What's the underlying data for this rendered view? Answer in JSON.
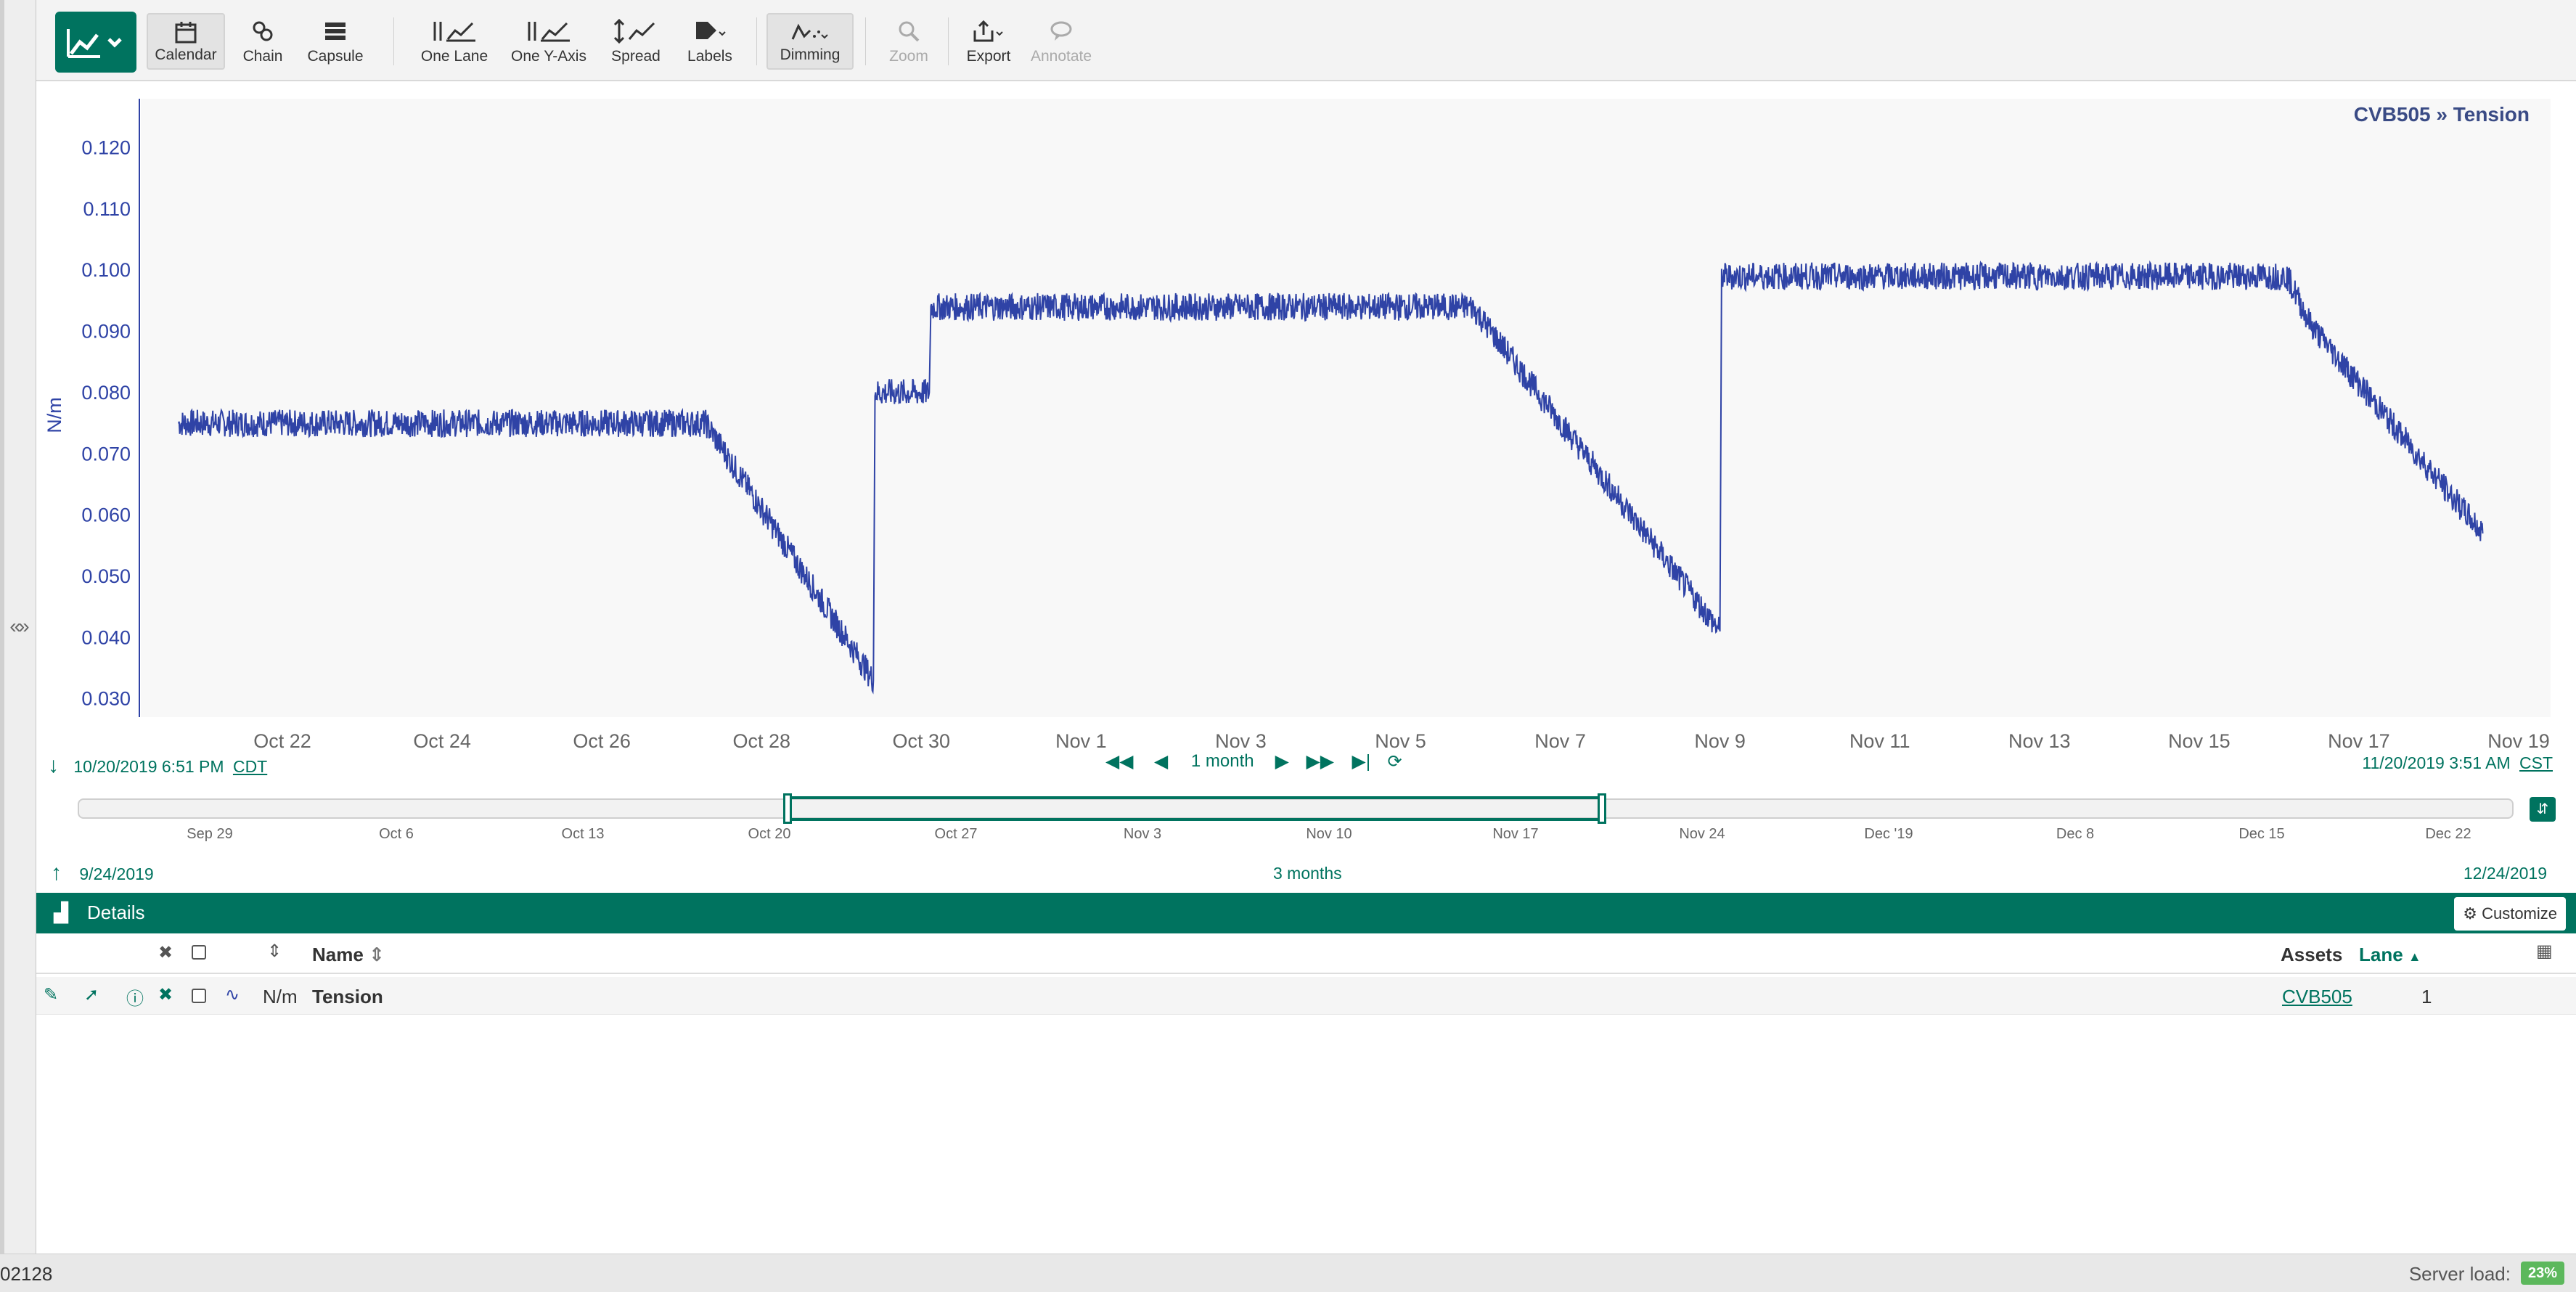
{
  "toolbar": {
    "buttons": [
      {
        "label": "Calendar",
        "icon": "calendar-icon"
      },
      {
        "label": "Chain",
        "icon": "chain-icon"
      },
      {
        "label": "Capsule",
        "icon": "capsule-icon"
      },
      {
        "label": "One Lane",
        "icon": "one-lane-icon"
      },
      {
        "label": "One Y-Axis",
        "icon": "one-y-axis-icon"
      },
      {
        "label": "Spread",
        "icon": "spread-icon"
      },
      {
        "label": "Labels",
        "icon": "labels-icon"
      },
      {
        "label": "Dimming",
        "icon": "dimming-icon"
      },
      {
        "label": "Zoom",
        "icon": "zoom-icon"
      },
      {
        "label": "Export",
        "icon": "export-icon"
      },
      {
        "label": "Annotate",
        "icon": "annotate-icon"
      }
    ]
  },
  "chart_data": {
    "type": "line",
    "title": "CVB505 » Tension",
    "ylabel": "N/m",
    "xlabel": "",
    "ylim": [
      0.027,
      0.128
    ],
    "y_ticks": [
      "0.030",
      "0.040",
      "0.050",
      "0.060",
      "0.070",
      "0.080",
      "0.090",
      "0.100",
      "0.110",
      "0.120"
    ],
    "x_ticks": [
      "Oct 22",
      "Oct 24",
      "Oct 26",
      "Oct 28",
      "Oct 30",
      "Nov 1",
      "Nov 3",
      "Nov 5",
      "Nov 7",
      "Nov 9",
      "Nov 11",
      "Nov 13",
      "Nov 15",
      "Nov 17",
      "Nov 19"
    ],
    "series": [
      {
        "name": "Tension",
        "color": "#2f43a6",
        "x_days_since_oct20_18h": [
          0.0,
          6.6,
          8.7,
          8.72,
          9.4,
          9.42,
          16.2,
          19.3,
          19.32,
          26.4,
          26.7,
          28.4,
          28.85
        ],
        "y": [
          0.075,
          0.075,
          0.033,
          0.08,
          0.08,
          0.094,
          0.094,
          0.041,
          0.099,
          0.099,
          0.091,
          0.064,
          0.057
        ]
      }
    ]
  },
  "display_range": {
    "start": "10/20/2019 6:51 PM",
    "start_tz": "CDT",
    "end": "11/20/2019 3:51 AM",
    "end_tz": "CST",
    "duration": "1 month"
  },
  "overview": {
    "ticks": [
      "Sep 29",
      "Oct 6",
      "Oct 13",
      "Oct 20",
      "Oct 27",
      "Nov 3",
      "Nov 10",
      "Nov 17",
      "Nov 24",
      "Dec '19",
      "Dec 8",
      "Dec 15",
      "Dec 22"
    ],
    "start": "9/24/2019",
    "duration": "3 months",
    "end": "12/24/2019"
  },
  "details": {
    "title": "Details",
    "customize_label": "Customize",
    "headers": {
      "name": "Name",
      "assets": "Assets",
      "lane": "Lane"
    },
    "rows": [
      {
        "unit": "N/m",
        "name": "Tension",
        "asset": "CVB505",
        "lane": "1"
      }
    ]
  },
  "status": {
    "left_text": "02128",
    "server_load_label": "Server load:",
    "server_load_value": "23%"
  }
}
